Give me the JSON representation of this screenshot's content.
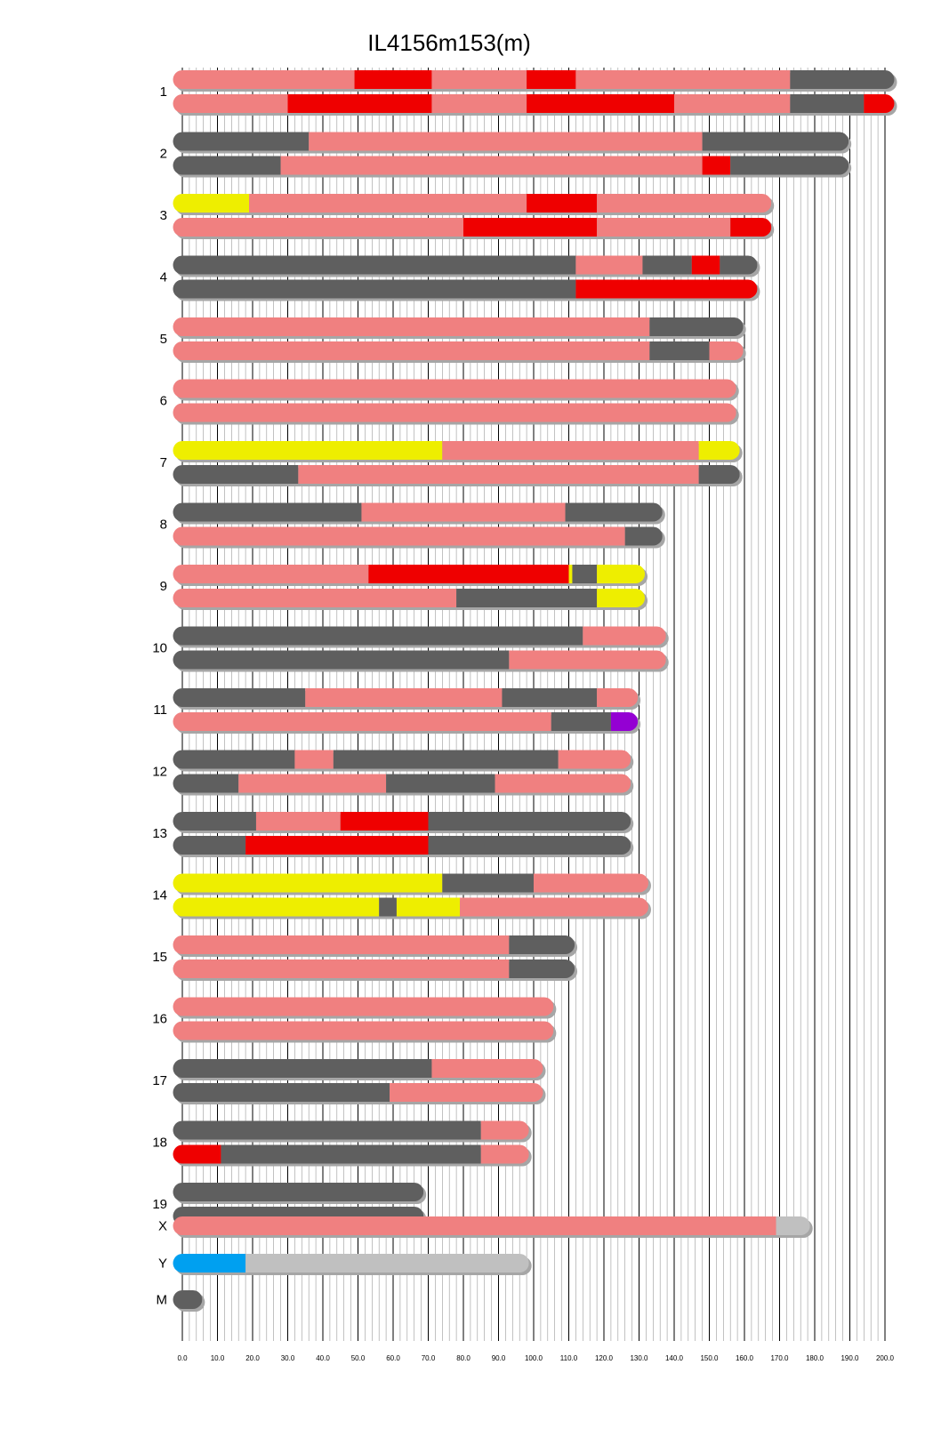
{
  "chart_data": {
    "type": "bar",
    "title": "IL4156m153(m)",
    "xlabel": "",
    "ylabel": "",
    "xlim": [
      0,
      200
    ],
    "x_ticks": [
      "0.0",
      "10.0",
      "20.0",
      "30.0",
      "40.0",
      "50.0",
      "60.0",
      "70.0",
      "80.0",
      "90.0",
      "100.0",
      "110.0",
      "120.0",
      "130.0",
      "140.0",
      "150.0",
      "160.0",
      "170.0",
      "180.0",
      "190.0",
      "200.0"
    ],
    "grid": true,
    "legend": "none",
    "colors": {
      "pink": "#f08080",
      "gray": "#5f5f5f",
      "red": "#ef0000",
      "yellow": "#eeee00",
      "purple": "#9400d3",
      "lightgray": "#c0c0c0",
      "blue": "#00a0f0",
      "shadow": "#a6a6a6",
      "gridline": "#000000"
    },
    "chromosomes": [
      {
        "name": "1",
        "strands": [
          [
            [
              0,
              49,
              "pink"
            ],
            [
              49,
              71,
              "red"
            ],
            [
              71,
              98,
              "pink"
            ],
            [
              98,
              112,
              "red"
            ],
            [
              112,
              173,
              "pink"
            ],
            [
              173,
              200,
              "gray"
            ]
          ],
          [
            [
              0,
              30,
              "pink"
            ],
            [
              30,
              71,
              "red"
            ],
            [
              71,
              98,
              "pink"
            ],
            [
              98,
              140,
              "red"
            ],
            [
              140,
              173,
              "pink"
            ],
            [
              173,
              194,
              "gray"
            ],
            [
              194,
              200,
              "red"
            ]
          ]
        ]
      },
      {
        "name": "2",
        "strands": [
          [
            [
              0,
              36,
              "gray"
            ],
            [
              36,
              148,
              "pink"
            ],
            [
              148,
              187,
              "gray"
            ]
          ],
          [
            [
              0,
              28,
              "gray"
            ],
            [
              28,
              148,
              "pink"
            ],
            [
              148,
              156,
              "red"
            ],
            [
              156,
              187,
              "gray"
            ]
          ]
        ]
      },
      {
        "name": "3",
        "strands": [
          [
            [
              0,
              19,
              "yellow"
            ],
            [
              19,
              98,
              "pink"
            ],
            [
              98,
              118,
              "red"
            ],
            [
              118,
              165,
              "pink"
            ]
          ],
          [
            [
              0,
              80,
              "pink"
            ],
            [
              80,
              118,
              "red"
            ],
            [
              118,
              156,
              "pink"
            ],
            [
              156,
              165,
              "red"
            ]
          ]
        ]
      },
      {
        "name": "4",
        "strands": [
          [
            [
              0,
              112,
              "gray"
            ],
            [
              112,
              131,
              "pink"
            ],
            [
              131,
              145,
              "gray"
            ],
            [
              145,
              153,
              "red"
            ],
            [
              153,
              161,
              "gray"
            ]
          ],
          [
            [
              0,
              112,
              "gray"
            ],
            [
              112,
              161,
              "red"
            ]
          ]
        ]
      },
      {
        "name": "5",
        "strands": [
          [
            [
              0,
              133,
              "pink"
            ],
            [
              133,
              157,
              "gray"
            ]
          ],
          [
            [
              0,
              133,
              "pink"
            ],
            [
              133,
              150,
              "gray"
            ],
            [
              150,
              157,
              "pink"
            ]
          ]
        ]
      },
      {
        "name": "6",
        "strands": [
          [
            [
              0,
              155,
              "pink"
            ]
          ],
          [
            [
              0,
              155,
              "pink"
            ]
          ]
        ]
      },
      {
        "name": "7",
        "strands": [
          [
            [
              0,
              74,
              "yellow"
            ],
            [
              74,
              147,
              "pink"
            ],
            [
              147,
              156,
              "yellow"
            ]
          ],
          [
            [
              0,
              33,
              "gray"
            ],
            [
              33,
              147,
              "pink"
            ],
            [
              147,
              156,
              "gray"
            ]
          ]
        ]
      },
      {
        "name": "8",
        "strands": [
          [
            [
              0,
              51,
              "gray"
            ],
            [
              51,
              109,
              "pink"
            ],
            [
              109,
              134,
              "gray"
            ]
          ],
          [
            [
              0,
              126,
              "pink"
            ],
            [
              126,
              134,
              "gray"
            ]
          ]
        ]
      },
      {
        "name": "9",
        "strands": [
          [
            [
              0,
              53,
              "pink"
            ],
            [
              53,
              110,
              "red"
            ],
            [
              110,
              111,
              "yellow"
            ],
            [
              111,
              118,
              "gray"
            ],
            [
              118,
              129,
              "yellow"
            ]
          ],
          [
            [
              0,
              78,
              "pink"
            ],
            [
              78,
              118,
              "gray"
            ],
            [
              118,
              129,
              "yellow"
            ]
          ]
        ]
      },
      {
        "name": "10",
        "strands": [
          [
            [
              0,
              114,
              "gray"
            ],
            [
              114,
              135,
              "pink"
            ]
          ],
          [
            [
              0,
              93,
              "gray"
            ],
            [
              93,
              135,
              "pink"
            ]
          ]
        ]
      },
      {
        "name": "11",
        "strands": [
          [
            [
              0,
              35,
              "gray"
            ],
            [
              35,
              91,
              "pink"
            ],
            [
              91,
              118,
              "gray"
            ],
            [
              118,
              127,
              "pink"
            ]
          ],
          [
            [
              0,
              105,
              "pink"
            ],
            [
              105,
              122,
              "gray"
            ],
            [
              122,
              127,
              "purple"
            ]
          ]
        ]
      },
      {
        "name": "12",
        "strands": [
          [
            [
              0,
              32,
              "gray"
            ],
            [
              32,
              43,
              "pink"
            ],
            [
              43,
              107,
              "gray"
            ],
            [
              107,
              125,
              "pink"
            ]
          ],
          [
            [
              0,
              16,
              "gray"
            ],
            [
              16,
              58,
              "pink"
            ],
            [
              58,
              89,
              "gray"
            ],
            [
              89,
              125,
              "pink"
            ]
          ]
        ]
      },
      {
        "name": "13",
        "strands": [
          [
            [
              0,
              21,
              "gray"
            ],
            [
              21,
              45,
              "pink"
            ],
            [
              45,
              70,
              "red"
            ],
            [
              70,
              125,
              "gray"
            ]
          ],
          [
            [
              0,
              18,
              "gray"
            ],
            [
              18,
              70,
              "red"
            ],
            [
              70,
              125,
              "gray"
            ]
          ]
        ]
      },
      {
        "name": "14",
        "strands": [
          [
            [
              0,
              74,
              "yellow"
            ],
            [
              74,
              100,
              "gray"
            ],
            [
              100,
              130,
              "pink"
            ]
          ],
          [
            [
              0,
              56,
              "yellow"
            ],
            [
              56,
              61,
              "gray"
            ],
            [
              61,
              79,
              "yellow"
            ],
            [
              79,
              130,
              "pink"
            ]
          ]
        ]
      },
      {
        "name": "15",
        "strands": [
          [
            [
              0,
              93,
              "pink"
            ],
            [
              93,
              109,
              "gray"
            ]
          ],
          [
            [
              0,
              93,
              "pink"
            ],
            [
              93,
              109,
              "gray"
            ]
          ]
        ]
      },
      {
        "name": "16",
        "strands": [
          [
            [
              0,
              103,
              "pink"
            ]
          ],
          [
            [
              0,
              103,
              "pink"
            ]
          ]
        ]
      },
      {
        "name": "17",
        "strands": [
          [
            [
              0,
              71,
              "gray"
            ],
            [
              71,
              100,
              "pink"
            ]
          ],
          [
            [
              0,
              59,
              "gray"
            ],
            [
              59,
              100,
              "pink"
            ]
          ]
        ]
      },
      {
        "name": "18",
        "strands": [
          [
            [
              0,
              85,
              "gray"
            ],
            [
              85,
              96,
              "pink"
            ]
          ],
          [
            [
              0,
              11,
              "red"
            ],
            [
              11,
              85,
              "gray"
            ],
            [
              85,
              96,
              "pink"
            ]
          ]
        ]
      },
      {
        "name": "19",
        "strands": [
          [
            [
              0,
              66,
              "gray"
            ]
          ],
          [
            [
              0,
              66,
              "gray"
            ]
          ]
        ]
      },
      {
        "name": "X",
        "strands": [
          [
            [
              0,
              169,
              "pink"
            ],
            [
              169,
              176,
              "lightgray"
            ]
          ]
        ]
      },
      {
        "name": "Y",
        "strands": [
          [
            [
              0,
              18,
              "blue"
            ],
            [
              18,
              96,
              "lightgray"
            ]
          ]
        ]
      },
      {
        "name": "M",
        "strands": [
          [
            [
              0,
              3,
              "gray"
            ]
          ]
        ]
      }
    ]
  }
}
